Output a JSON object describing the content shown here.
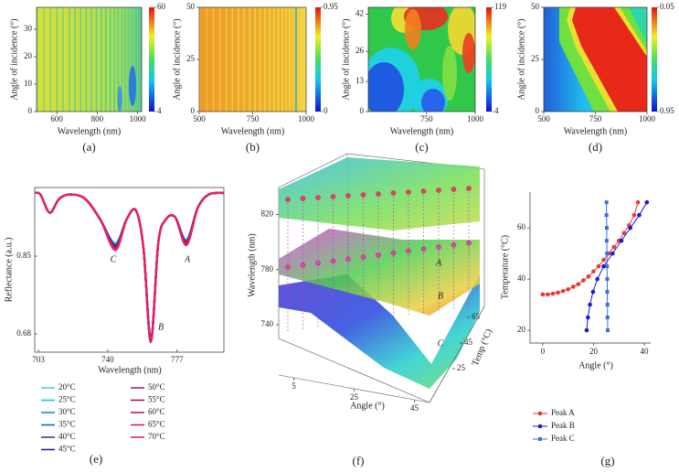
{
  "chart_data": [
    {
      "type": "heatmap",
      "label": "(a)",
      "xlabel": "Wavelength (nm)",
      "ylabel": "Angle of incidence (°)",
      "xlim": [
        500,
        1020
      ],
      "xticks": [
        600,
        800,
        1000
      ],
      "ylim": [
        0,
        38
      ],
      "yticks": [
        0,
        10,
        20,
        30
      ],
      "clim": [
        4,
        60
      ],
      "cticks": [
        4,
        60
      ]
    },
    {
      "type": "heatmap",
      "label": "(b)",
      "xlabel": "Wavelength (nm)",
      "ylabel": "Angle of incidence (°)",
      "xlim": [
        500,
        1000
      ],
      "xticks": [
        500,
        750,
        1000
      ],
      "ylim": [
        0,
        50
      ],
      "yticks": [
        0,
        25,
        50
      ],
      "clim": [
        0,
        0.95
      ],
      "cticks": [
        0,
        0.95
      ]
    },
    {
      "type": "heatmap",
      "label": "(c)",
      "xlabel": "Wavelength (nm)",
      "ylabel": "Angle of incidence (°)",
      "xlim": [
        450,
        1000
      ],
      "xticks": [
        750,
        1000
      ],
      "ylim": [
        0,
        45
      ],
      "yticks": [
        0,
        13,
        26,
        42
      ],
      "clim": [
        4,
        119
      ],
      "cticks": [
        4,
        119
      ]
    },
    {
      "type": "heatmap",
      "label": "(d)",
      "xlabel": "Wavelength (nm)",
      "ylabel": "Angle of incidence (°)",
      "xlim": [
        500,
        1000
      ],
      "xticks": [
        500,
        750,
        1000
      ],
      "ylim": [
        0,
        50
      ],
      "yticks": [
        0,
        25,
        50
      ],
      "clim": [
        0.95,
        0.05
      ],
      "cticks": [
        0.95,
        0.05
      ]
    },
    {
      "type": "line",
      "label": "(e)",
      "xlabel": "Wavelength (nm)",
      "ylabel": "Reflectance (a.u.)",
      "xlim": [
        701,
        802
      ],
      "xticks": [
        703,
        740,
        777
      ],
      "ylim": [
        0.64,
        1.0
      ],
      "yticks": [
        0.68,
        0.85
      ],
      "annotations": [
        "C",
        "B",
        "A"
      ],
      "x": [
        701,
        704,
        709,
        714,
        720,
        728,
        736,
        744,
        750,
        755,
        759,
        763,
        767,
        771,
        776,
        782,
        788,
        794,
        802
      ],
      "series": [
        {
          "name": "20°C",
          "color": "#4dd0e1",
          "values": [
            0.988,
            0.985,
            0.945,
            0.975,
            0.985,
            0.975,
            0.93,
            0.878,
            0.93,
            0.95,
            0.87,
            0.672,
            0.88,
            0.93,
            0.935,
            0.886,
            0.955,
            0.985,
            0.988
          ]
        },
        {
          "name": "25°C",
          "color": "#29b6f6",
          "values": [
            0.988,
            0.985,
            0.945,
            0.975,
            0.985,
            0.975,
            0.93,
            0.877,
            0.93,
            0.95,
            0.87,
            0.671,
            0.88,
            0.93,
            0.935,
            0.885,
            0.955,
            0.985,
            0.988
          ]
        },
        {
          "name": "30°C",
          "color": "#1e88e5",
          "values": [
            0.988,
            0.985,
            0.945,
            0.975,
            0.985,
            0.975,
            0.93,
            0.875,
            0.93,
            0.95,
            0.87,
            0.67,
            0.88,
            0.93,
            0.935,
            0.884,
            0.955,
            0.985,
            0.988
          ]
        },
        {
          "name": "35°C",
          "color": "#1565c0",
          "values": [
            0.988,
            0.985,
            0.945,
            0.975,
            0.985,
            0.975,
            0.93,
            0.874,
            0.93,
            0.95,
            0.87,
            0.669,
            0.88,
            0.93,
            0.935,
            0.882,
            0.955,
            0.985,
            0.988
          ]
        },
        {
          "name": "40°C",
          "color": "#303f9f",
          "values": [
            0.988,
            0.985,
            0.945,
            0.975,
            0.985,
            0.975,
            0.93,
            0.872,
            0.93,
            0.95,
            0.87,
            0.668,
            0.88,
            0.93,
            0.935,
            0.881,
            0.955,
            0.985,
            0.988
          ]
        },
        {
          "name": "45°C",
          "color": "#4a148c",
          "values": [
            0.988,
            0.985,
            0.945,
            0.975,
            0.985,
            0.975,
            0.93,
            0.871,
            0.93,
            0.95,
            0.87,
            0.667,
            0.88,
            0.93,
            0.935,
            0.88,
            0.955,
            0.985,
            0.988
          ]
        },
        {
          "name": "50°C",
          "color": "#8e24aa",
          "values": [
            0.988,
            0.985,
            0.945,
            0.975,
            0.985,
            0.975,
            0.93,
            0.869,
            0.93,
            0.95,
            0.87,
            0.666,
            0.88,
            0.93,
            0.935,
            0.879,
            0.955,
            0.985,
            0.988
          ]
        },
        {
          "name": "55°C",
          "color": "#ad1457",
          "values": [
            0.988,
            0.985,
            0.945,
            0.975,
            0.985,
            0.975,
            0.93,
            0.868,
            0.93,
            0.95,
            0.87,
            0.665,
            0.88,
            0.93,
            0.935,
            0.878,
            0.955,
            0.985,
            0.988
          ]
        },
        {
          "name": "60°C",
          "color": "#c2185b",
          "values": [
            0.988,
            0.985,
            0.945,
            0.975,
            0.985,
            0.975,
            0.93,
            0.866,
            0.93,
            0.95,
            0.87,
            0.664,
            0.88,
            0.93,
            0.935,
            0.876,
            0.955,
            0.985,
            0.988
          ]
        },
        {
          "name": "65°C",
          "color": "#d81b60",
          "values": [
            0.988,
            0.985,
            0.945,
            0.975,
            0.985,
            0.975,
            0.93,
            0.865,
            0.93,
            0.95,
            0.87,
            0.663,
            0.88,
            0.93,
            0.935,
            0.875,
            0.955,
            0.985,
            0.988
          ]
        },
        {
          "name": "70°C",
          "color": "#e91e63",
          "values": [
            0.988,
            0.985,
            0.945,
            0.975,
            0.985,
            0.975,
            0.93,
            0.863,
            0.93,
            0.95,
            0.87,
            0.662,
            0.88,
            0.93,
            0.935,
            0.874,
            0.955,
            0.985,
            0.988
          ]
        }
      ]
    },
    {
      "type": "surface3d",
      "label": "(f)",
      "xlabel": "Angle (°)",
      "ylabel": "Temp (°C)",
      "zlabel": "Wavelength (nm)",
      "xlim": [
        0,
        50
      ],
      "xticks": [
        5,
        25,
        45
      ],
      "ylim": [
        20,
        70
      ],
      "yticks": [
        25,
        45,
        65
      ],
      "zlim": [
        730,
        835
      ],
      "zticks": [
        740,
        780,
        820
      ],
      "annotations": [
        "A",
        "B",
        "C"
      ]
    },
    {
      "type": "line",
      "label": "(g)",
      "xlabel": "Angle (°)",
      "ylabel": "Temperature (°C)",
      "xlim": [
        -5,
        42.5
      ],
      "xticks": [
        0,
        20,
        40
      ],
      "ylim": [
        15,
        74
      ],
      "yticks": [
        20,
        40,
        60
      ],
      "series": [
        {
          "name": "Peak A",
          "color": "#e53935",
          "marker": "circle",
          "x": [
            0,
            2,
            4,
            6,
            8,
            10,
            12,
            14,
            16,
            18,
            20,
            22,
            24,
            26,
            28,
            30,
            32,
            34,
            36,
            37.5
          ],
          "values": [
            34,
            34,
            34.3,
            34.7,
            35.3,
            36,
            37,
            38,
            39.5,
            41,
            43,
            45,
            47.5,
            50,
            52.5,
            55,
            58,
            61,
            65,
            70
          ]
        },
        {
          "name": "Peak B",
          "color": "#1a1ad6",
          "marker": "circle",
          "x": [
            17.3,
            17.8,
            18.6,
            19.8,
            21.5,
            24,
            27.5,
            31,
            34.5,
            38,
            41
          ],
          "values": [
            20,
            25,
            30,
            35,
            40,
            45,
            50,
            55,
            60,
            65,
            70
          ]
        },
        {
          "name": "Peak C",
          "color": "#3b6fd4",
          "marker": "square",
          "x": [
            25.6,
            25.5,
            25.5,
            25.4,
            25.4,
            25.3,
            25.3,
            25.2,
            25.2,
            25.1,
            25.1
          ],
          "values": [
            20,
            25,
            30,
            35,
            40,
            45,
            50,
            55,
            60,
            65,
            70
          ]
        }
      ]
    }
  ]
}
